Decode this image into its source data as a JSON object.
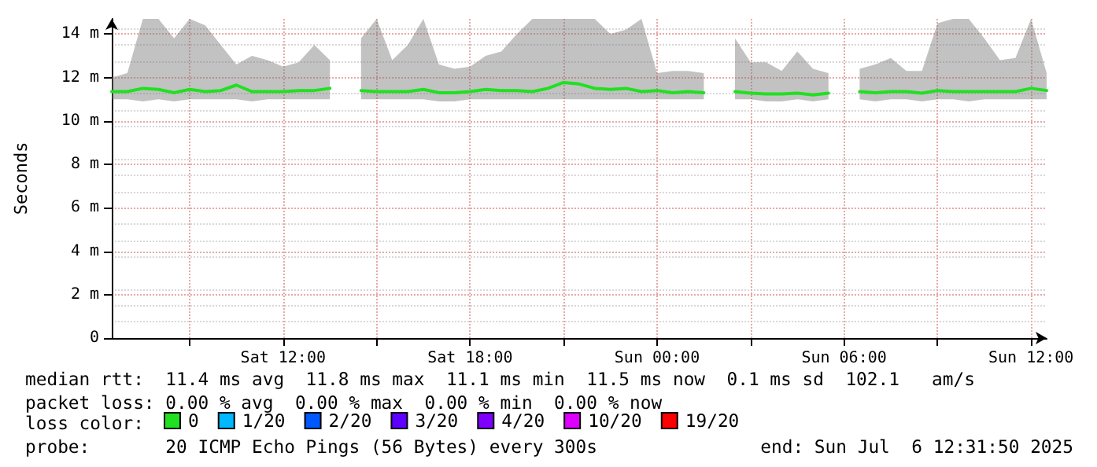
{
  "chart_data": {
    "type": "line",
    "ylabel": "Seconds",
    "legend_title": "loss color:",
    "legend": "bottom left",
    "grid": true,
    "marker": "none",
    "line_style": "solid",
    "x": [
      "2025-07-05T06:30",
      "2025-07-05T07:00",
      "2025-07-05T07:30",
      "2025-07-05T08:00",
      "2025-07-05T08:30",
      "2025-07-05T09:00",
      "2025-07-05T09:30",
      "2025-07-05T10:00",
      "2025-07-05T10:30",
      "2025-07-05T11:00",
      "2025-07-05T11:30",
      "2025-07-05T12:00",
      "2025-07-05T12:30",
      "2025-07-05T13:00",
      "2025-07-05T13:30",
      "2025-07-05T14:00",
      "2025-07-05T14:30",
      "2025-07-05T15:00",
      "2025-07-05T15:30",
      "2025-07-05T16:00",
      "2025-07-05T16:30",
      "2025-07-05T17:00",
      "2025-07-05T17:30",
      "2025-07-05T18:00",
      "2025-07-05T18:30",
      "2025-07-05T19:00",
      "2025-07-05T19:30",
      "2025-07-05T20:00",
      "2025-07-05T20:30",
      "2025-07-05T21:00",
      "2025-07-05T21:30",
      "2025-07-05T22:00",
      "2025-07-05T22:30",
      "2025-07-05T23:00",
      "2025-07-05T23:30",
      "2025-07-06T00:00",
      "2025-07-06T00:30",
      "2025-07-06T01:00",
      "2025-07-06T01:30",
      "2025-07-06T02:00",
      "2025-07-06T02:30",
      "2025-07-06T03:00",
      "2025-07-06T03:30",
      "2025-07-06T04:00",
      "2025-07-06T04:30",
      "2025-07-06T05:00",
      "2025-07-06T05:30",
      "2025-07-06T06:00",
      "2025-07-06T06:30",
      "2025-07-06T07:00",
      "2025-07-06T07:30",
      "2025-07-06T08:00",
      "2025-07-06T08:30",
      "2025-07-06T09:00",
      "2025-07-06T09:30",
      "2025-07-06T10:00",
      "2025-07-06T10:30",
      "2025-07-06T11:00",
      "2025-07-06T11:30",
      "2025-07-06T12:00",
      "2025-07-06T12:30"
    ],
    "xlim": [
      "2025-07-05T06:30",
      "2025-07-06T12:30"
    ],
    "xticks": [
      {
        "value": "2025-07-05T09:00",
        "label": null
      },
      {
        "value": "2025-07-05T12:00",
        "label": "Sat 12:00"
      },
      {
        "value": "2025-07-05T15:00",
        "label": null
      },
      {
        "value": "2025-07-05T18:00",
        "label": "Sat 18:00"
      },
      {
        "value": "2025-07-05T21:00",
        "label": null
      },
      {
        "value": "2025-07-06T00:00",
        "label": "Sun 00:00"
      },
      {
        "value": "2025-07-06T03:00",
        "label": null
      },
      {
        "value": "2025-07-06T06:00",
        "label": "Sun 06:00"
      },
      {
        "value": "2025-07-06T09:00",
        "label": null
      },
      {
        "value": "2025-07-06T12:00",
        "label": "Sun 12:00"
      }
    ],
    "ylim": [
      0,
      14.7
    ],
    "yticks": [
      0,
      {
        "value": 2,
        "label": "2 m"
      },
      {
        "value": 4,
        "label": "4 m"
      },
      {
        "value": 6,
        "label": "6 m"
      },
      {
        "value": 8,
        "label": "8 m"
      },
      {
        "value": 10,
        "label": "10 m"
      },
      {
        "value": 12,
        "label": "12 m"
      },
      {
        "value": 14,
        "label": "14 m"
      }
    ],
    "series": [
      {
        "name": "0",
        "color": "#20e020",
        "values": [
          11.35,
          11.35,
          11.5,
          11.45,
          11.3,
          11.45,
          11.35,
          11.4,
          11.65,
          11.35,
          11.35,
          11.35,
          11.4,
          11.4,
          11.5,
          null,
          11.4,
          11.35,
          11.35,
          11.35,
          11.45,
          11.3,
          11.3,
          11.35,
          11.45,
          11.4,
          11.4,
          11.35,
          11.5,
          11.77,
          11.7,
          11.5,
          11.45,
          11.5,
          11.35,
          11.4,
          11.3,
          11.35,
          11.3,
          null,
          11.35,
          11.28,
          11.24,
          11.24,
          11.28,
          11.2,
          11.28,
          null,
          11.35,
          11.3,
          11.35,
          11.35,
          11.28,
          11.4,
          11.35,
          11.35,
          11.35,
          11.35,
          11.35,
          11.5,
          11.4
        ],
        "lower": [
          11.0,
          11.0,
          10.9,
          11.0,
          10.9,
          11.0,
          11.0,
          11.0,
          11.0,
          10.9,
          11.0,
          11.0,
          11.0,
          11.0,
          11.0,
          null,
          11.0,
          11.0,
          11.0,
          11.0,
          11.0,
          10.9,
          10.9,
          11.0,
          11.0,
          11.0,
          11.0,
          11.0,
          11.0,
          11.0,
          11.0,
          11.0,
          11.0,
          11.0,
          11.0,
          11.0,
          11.0,
          11.0,
          11.0,
          null,
          11.0,
          11.0,
          10.9,
          10.9,
          11.0,
          10.9,
          11.0,
          null,
          11.0,
          10.9,
          11.0,
          11.0,
          10.9,
          11.0,
          11.0,
          10.9,
          11.0,
          11.0,
          11.0,
          11.0,
          11.0
        ],
        "upper": [
          12.0,
          12.2,
          14.7,
          14.7,
          13.8,
          14.7,
          14.4,
          13.5,
          12.6,
          13.0,
          12.8,
          12.5,
          12.7,
          13.5,
          12.8,
          null,
          13.8,
          14.7,
          12.8,
          13.5,
          14.7,
          12.6,
          12.4,
          12.5,
          13.0,
          13.2,
          14.0,
          14.7,
          14.7,
          14.7,
          14.7,
          14.7,
          14.0,
          14.2,
          14.7,
          12.2,
          12.3,
          12.3,
          12.2,
          null,
          13.8,
          12.7,
          12.7,
          12.3,
          13.2,
          12.4,
          12.2,
          null,
          12.4,
          12.6,
          12.9,
          12.3,
          12.3,
          14.5,
          14.7,
          14.7,
          13.8,
          12.8,
          12.9,
          14.7,
          12.2
        ]
      },
      {
        "name": "1/20",
        "color": "#00b8ff",
        "values": [
          null,
          null,
          null,
          null,
          null,
          null,
          null,
          null,
          null,
          null,
          null,
          null,
          null,
          null,
          null,
          null,
          null,
          null,
          null,
          null,
          null,
          null,
          null,
          null,
          null,
          null,
          null,
          null,
          null,
          null,
          null,
          null,
          null,
          null,
          null,
          null,
          null,
          null,
          null,
          null,
          null,
          null,
          null,
          null,
          null,
          null,
          null,
          null,
          null,
          null,
          null,
          null,
          null,
          null,
          null,
          null,
          null,
          null,
          null,
          null,
          null
        ]
      },
      {
        "name": "2/20",
        "color": "#0059ff",
        "values": [
          null,
          null,
          null,
          null,
          null,
          null,
          null,
          null,
          null,
          null,
          null,
          null,
          null,
          null,
          null,
          null,
          null,
          null,
          null,
          null,
          null,
          null,
          null,
          null,
          null,
          null,
          null,
          null,
          null,
          null,
          null,
          null,
          null,
          null,
          null,
          null,
          null,
          null,
          null,
          null,
          null,
          null,
          null,
          null,
          null,
          null,
          null,
          null,
          null,
          null,
          null,
          null,
          null,
          null,
          null,
          null,
          null,
          null,
          null,
          null,
          null
        ]
      },
      {
        "name": "3/20",
        "color": "#5e00ff",
        "values": [
          null,
          null,
          null,
          null,
          null,
          null,
          null,
          null,
          null,
          null,
          null,
          null,
          null,
          null,
          null,
          null,
          null,
          null,
          null,
          null,
          null,
          null,
          null,
          null,
          null,
          null,
          null,
          null,
          null,
          null,
          null,
          null,
          null,
          null,
          null,
          null,
          null,
          null,
          null,
          null,
          null,
          null,
          null,
          null,
          null,
          null,
          null,
          null,
          null,
          null,
          null,
          null,
          null,
          null,
          null,
          null,
          null,
          null,
          null,
          null,
          null
        ]
      },
      {
        "name": "4/20",
        "color": "#7e00ff",
        "values": [
          null,
          null,
          null,
          null,
          null,
          null,
          null,
          null,
          null,
          null,
          null,
          null,
          null,
          null,
          null,
          null,
          null,
          null,
          null,
          null,
          null,
          null,
          null,
          null,
          null,
          null,
          null,
          null,
          null,
          null,
          null,
          null,
          null,
          null,
          null,
          null,
          null,
          null,
          null,
          null,
          null,
          null,
          null,
          null,
          null,
          null,
          null,
          null,
          null,
          null,
          null,
          null,
          null,
          null,
          null,
          null,
          null,
          null,
          null,
          null,
          null
        ]
      },
      {
        "name": "10/20",
        "color": "#dd00ff",
        "values": [
          null,
          null,
          null,
          null,
          null,
          null,
          null,
          null,
          null,
          null,
          null,
          null,
          null,
          null,
          null,
          null,
          null,
          null,
          null,
          null,
          null,
          null,
          null,
          null,
          null,
          null,
          null,
          null,
          null,
          null,
          null,
          null,
          null,
          null,
          null,
          null,
          null,
          null,
          null,
          null,
          null,
          null,
          null,
          null,
          null,
          null,
          null,
          null,
          null,
          null,
          null,
          null,
          null,
          null,
          null,
          null,
          null,
          null,
          null,
          null,
          null
        ]
      },
      {
        "name": "19/20",
        "color": "#ff0000",
        "values": [
          null,
          null,
          null,
          null,
          null,
          null,
          null,
          null,
          null,
          null,
          null,
          null,
          null,
          null,
          null,
          null,
          null,
          null,
          null,
          null,
          null,
          null,
          null,
          null,
          null,
          null,
          null,
          null,
          null,
          null,
          null,
          null,
          null,
          null,
          null,
          null,
          null,
          null,
          null,
          null,
          null,
          null,
          null,
          null,
          null,
          null,
          null,
          null,
          null,
          null,
          null,
          null,
          null,
          null,
          null,
          null,
          null,
          null,
          null,
          null,
          null
        ]
      }
    ],
    "annotations": [
      "median rtt:  11.4 ms avg  11.8 ms max  11.1 ms min  11.5 ms now  0.1 ms sd  102.1   am/s",
      "packet loss: 0.00 % avg  0.00 % max  0.00 % min  0.00 % now",
      "probe:       20 ICMP Echo Pings (56 Bytes) every 300s",
      "end: Sun Jul  6 12:31:50 2025"
    ]
  }
}
